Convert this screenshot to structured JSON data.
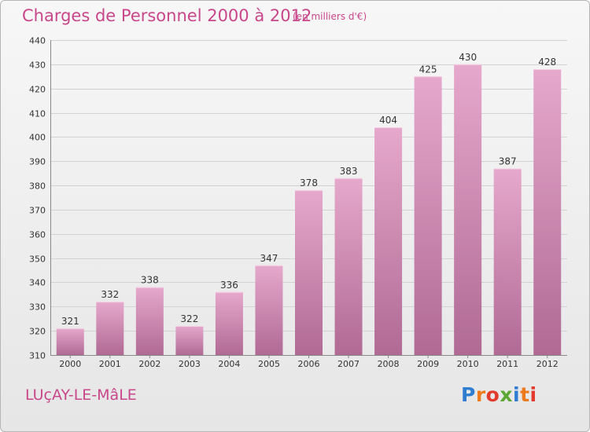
{
  "title": "Charges de Personnel 2000 à 2012",
  "subtitle": "(en milliers d'€)",
  "commune": "LUçAY-LE-MâLE",
  "logo": {
    "text": "Proxiti",
    "colors": [
      "#2e7dd1",
      "#ee7a1e",
      "#e23b2e",
      "#5aa832",
      "#2e7dd1",
      "#ee7a1e",
      "#e23b2e"
    ]
  },
  "colors": {
    "accent": "#c8468a",
    "bar_top": "#e6a8cc",
    "bar_bottom": "#b06a94",
    "grid": "#d2d2d2",
    "axis_text": "#333333"
  },
  "chart_data": {
    "type": "bar",
    "title": "Charges de Personnel 2000 à 2012",
    "subtitle": "(en milliers d'€)",
    "categories": [
      "2000",
      "2001",
      "2002",
      "2003",
      "2004",
      "2005",
      "2006",
      "2007",
      "2008",
      "2009",
      "2010",
      "2011",
      "2012"
    ],
    "values": [
      321,
      332,
      338,
      322,
      336,
      347,
      378,
      383,
      404,
      425,
      430,
      387,
      428
    ],
    "ylim": [
      310,
      440
    ],
    "yticks": [
      310,
      320,
      330,
      340,
      350,
      360,
      370,
      380,
      390,
      400,
      410,
      420,
      430,
      440
    ],
    "grid": true,
    "xlabel": "",
    "ylabel": ""
  }
}
